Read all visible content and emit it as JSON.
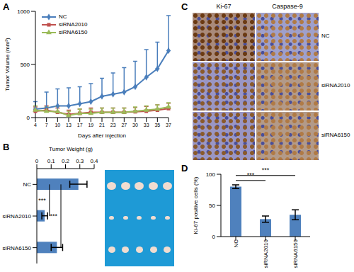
{
  "chart_data": [
    {
      "panel_label": "A",
      "type": "line",
      "x_label": "Days after injection",
      "y_label": "Tumor Volume (mm³)",
      "categories": [
        "4",
        "7",
        "10",
        "13",
        "17",
        "19",
        "21",
        "23",
        "27",
        "30",
        "33",
        "35",
        "37"
      ],
      "series": [
        {
          "name": "NC",
          "color": "#4a7ebb",
          "marker": "diamond",
          "values": [
            80,
            90,
            110,
            110,
            130,
            150,
            200,
            220,
            240,
            290,
            380,
            460,
            630
          ],
          "errors": [
            70,
            150,
            160,
            170,
            160,
            170,
            170,
            200,
            230,
            240,
            260,
            250,
            330
          ]
        },
        {
          "name": "siRNA2010",
          "color": "#c0504d",
          "marker": "square",
          "values": [
            60,
            70,
            50,
            30,
            40,
            50,
            50,
            50,
            50,
            55,
            60,
            70,
            85
          ],
          "errors": [
            40,
            40,
            40,
            40,
            40,
            40,
            40,
            40,
            40,
            40,
            45,
            50,
            50
          ]
        },
        {
          "name": "siRNA6150",
          "color": "#9bbb59",
          "marker": "triangle",
          "values": [
            70,
            60,
            55,
            20,
            40,
            40,
            50,
            50,
            50,
            60,
            70,
            80,
            100
          ],
          "errors": [
            40,
            40,
            50,
            40,
            40,
            40,
            40,
            40,
            40,
            40,
            40,
            40,
            40
          ]
        }
      ],
      "ylim": [
        0,
        1000
      ],
      "yticks": [
        0,
        500,
        1000
      ],
      "legend": "upper left",
      "grid": false
    },
    {
      "panel_label": "B",
      "type": "bar",
      "orientation": "horizontal",
      "x_label": "Tumor Weight (g)",
      "categories": [
        "NC",
        "siRNA2010",
        "siRNA6150"
      ],
      "values": [
        0.29,
        0.055,
        0.14
      ],
      "errors": [
        0.06,
        0.02,
        0.04
      ],
      "color": "#4f81bd",
      "xlim": [
        0,
        0.4
      ],
      "xticks": [
        0,
        0.1,
        0.2,
        0.3,
        0.4
      ],
      "grid": false,
      "annotations": [
        {
          "text": "***",
          "between": [
            "NC",
            "siRNA2010"
          ]
        },
        {
          "text": "***",
          "between": [
            "NC",
            "siRNA6150"
          ]
        }
      ]
    },
    {
      "panel_label": "C",
      "type": "image_grid",
      "columns": [
        "Ki-67",
        "Caspase-9"
      ],
      "rows": [
        "NC",
        "siRNA2010",
        "siRNA6150"
      ]
    },
    {
      "panel_label": "D",
      "type": "bar",
      "y_label": "Ki-67 positive cells (%)",
      "categories": [
        "NC",
        "siRNA2010",
        "siRNA6150"
      ],
      "values": [
        80,
        28,
        35
      ],
      "errors": [
        3,
        5,
        8
      ],
      "color": "#4f81bd",
      "ylim": [
        0,
        100
      ],
      "yticks": [
        0,
        50,
        100
      ],
      "grid": false,
      "annotations": [
        {
          "text": "***",
          "between": [
            "NC",
            "siRNA2010"
          ]
        },
        {
          "text": "***",
          "between": [
            "NC",
            "siRNA6150"
          ]
        }
      ]
    }
  ]
}
